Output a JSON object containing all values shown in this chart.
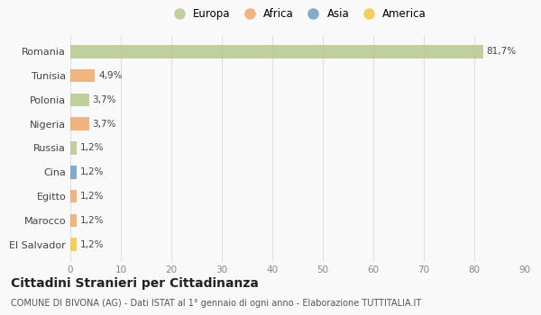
{
  "countries": [
    "Romania",
    "Tunisia",
    "Polonia",
    "Nigeria",
    "Russia",
    "Cina",
    "Egitto",
    "Marocco",
    "El Salvador"
  ],
  "values": [
    81.7,
    4.9,
    3.7,
    3.7,
    1.2,
    1.2,
    1.2,
    1.2,
    1.2
  ],
  "labels": [
    "81,7%",
    "4,9%",
    "3,7%",
    "3,7%",
    "1,2%",
    "1,2%",
    "1,2%",
    "1,2%",
    "1,2%"
  ],
  "colors": [
    "#b5c98e",
    "#f0a868",
    "#b5c98e",
    "#f0a868",
    "#b5c98e",
    "#6b9ec7",
    "#f0a868",
    "#f0a868",
    "#f5c842"
  ],
  "legend_labels": [
    "Europa",
    "Africa",
    "Asia",
    "America"
  ],
  "legend_colors": [
    "#b5c98e",
    "#f0a868",
    "#6b9ec7",
    "#f5c842"
  ],
  "title": "Cittadini Stranieri per Cittadinanza",
  "subtitle": "COMUNE DI BIVONA (AG) - Dati ISTAT al 1° gennaio di ogni anno - Elaborazione TUTTITALIA.IT",
  "xlim": [
    0,
    90
  ],
  "xticks": [
    0,
    10,
    20,
    30,
    40,
    50,
    60,
    70,
    80,
    90
  ],
  "bg_color": "#f9f9f9",
  "grid_color": "#e0e0e0",
  "bar_alpha": 0.85,
  "bar_height": 0.55
}
